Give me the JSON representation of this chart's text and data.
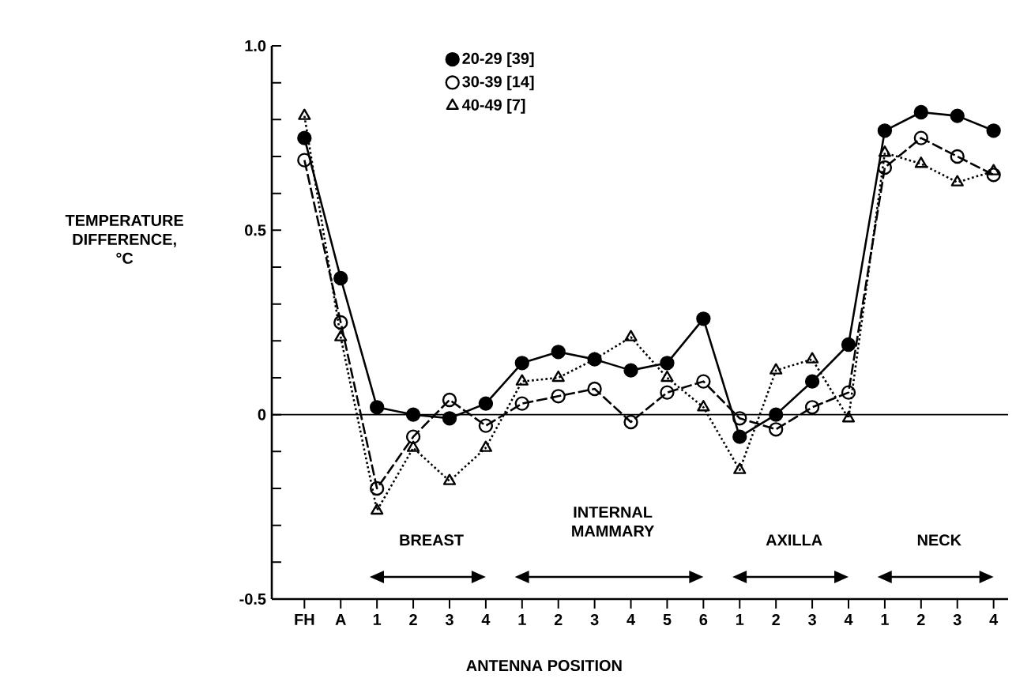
{
  "chart_data": {
    "type": "line",
    "xlabel": "ANTENNA POSITION",
    "ylabel": "TEMPERATURE DIFFERENCE, °C",
    "categories": [
      "FH",
      "A",
      "1",
      "2",
      "3",
      "4",
      "1",
      "2",
      "3",
      "4",
      "5",
      "6",
      "1",
      "2",
      "3",
      "4",
      "1",
      "2",
      "3",
      "4"
    ],
    "series": [
      {
        "name": "20-29 [39]",
        "color": "#000000",
        "marker": "circle",
        "line_style": "solid",
        "values": [
          0.75,
          0.37,
          0.02,
          0.0,
          -0.01,
          0.03,
          0.14,
          0.17,
          0.15,
          0.12,
          0.14,
          0.26,
          -0.06,
          0.0,
          0.09,
          0.19,
          0.77,
          0.82,
          0.81,
          0.77
        ]
      },
      {
        "name": "30-39 [14]",
        "color": "#000000",
        "marker": "circle-open",
        "line_style": "dashed",
        "values": [
          0.69,
          0.25,
          -0.2,
          -0.06,
          0.04,
          -0.03,
          0.03,
          0.05,
          0.07,
          -0.02,
          0.06,
          0.09,
          -0.01,
          -0.04,
          0.02,
          0.06,
          0.67,
          0.75,
          0.7,
          0.65
        ]
      },
      {
        "name": "40-49 [7]",
        "color": "#000000",
        "marker": "triangle",
        "line_style": "dotted",
        "values": [
          0.81,
          0.21,
          -0.26,
          -0.09,
          -0.18,
          -0.09,
          0.09,
          0.1,
          0.15,
          0.21,
          0.1,
          0.02,
          -0.15,
          0.12,
          0.15,
          -0.01,
          0.71,
          0.68,
          0.63,
          0.66
        ]
      }
    ],
    "ylim": [
      -0.5,
      1.0
    ],
    "yticks": [
      {
        "value": -0.5,
        "label": "-0.5"
      },
      {
        "value": -0.4,
        "label": null
      },
      {
        "value": -0.3,
        "label": null
      },
      {
        "value": -0.2,
        "label": null
      },
      {
        "value": -0.1,
        "label": null
      },
      {
        "value": 0,
        "label": "0"
      },
      {
        "value": 0.1,
        "label": null
      },
      {
        "value": 0.2,
        "label": null
      },
      {
        "value": 0.3,
        "label": null
      },
      {
        "value": 0.4,
        "label": null
      },
      {
        "value": 0.5,
        "label": "0.5"
      },
      {
        "value": 0.6,
        "label": null
      },
      {
        "value": 0.7,
        "label": null
      },
      {
        "value": 0.8,
        "label": null
      },
      {
        "value": 0.9,
        "label": null
      },
      {
        "value": 1.0,
        "label": "1.0"
      }
    ],
    "ref_lines": [
      {
        "axis": "y",
        "value": 0
      }
    ],
    "annotations": [
      "BREAST",
      "INTERNAL MAMMARY",
      "AXILLA",
      "NECK"
    ],
    "legend": "top",
    "grid": false
  }
}
